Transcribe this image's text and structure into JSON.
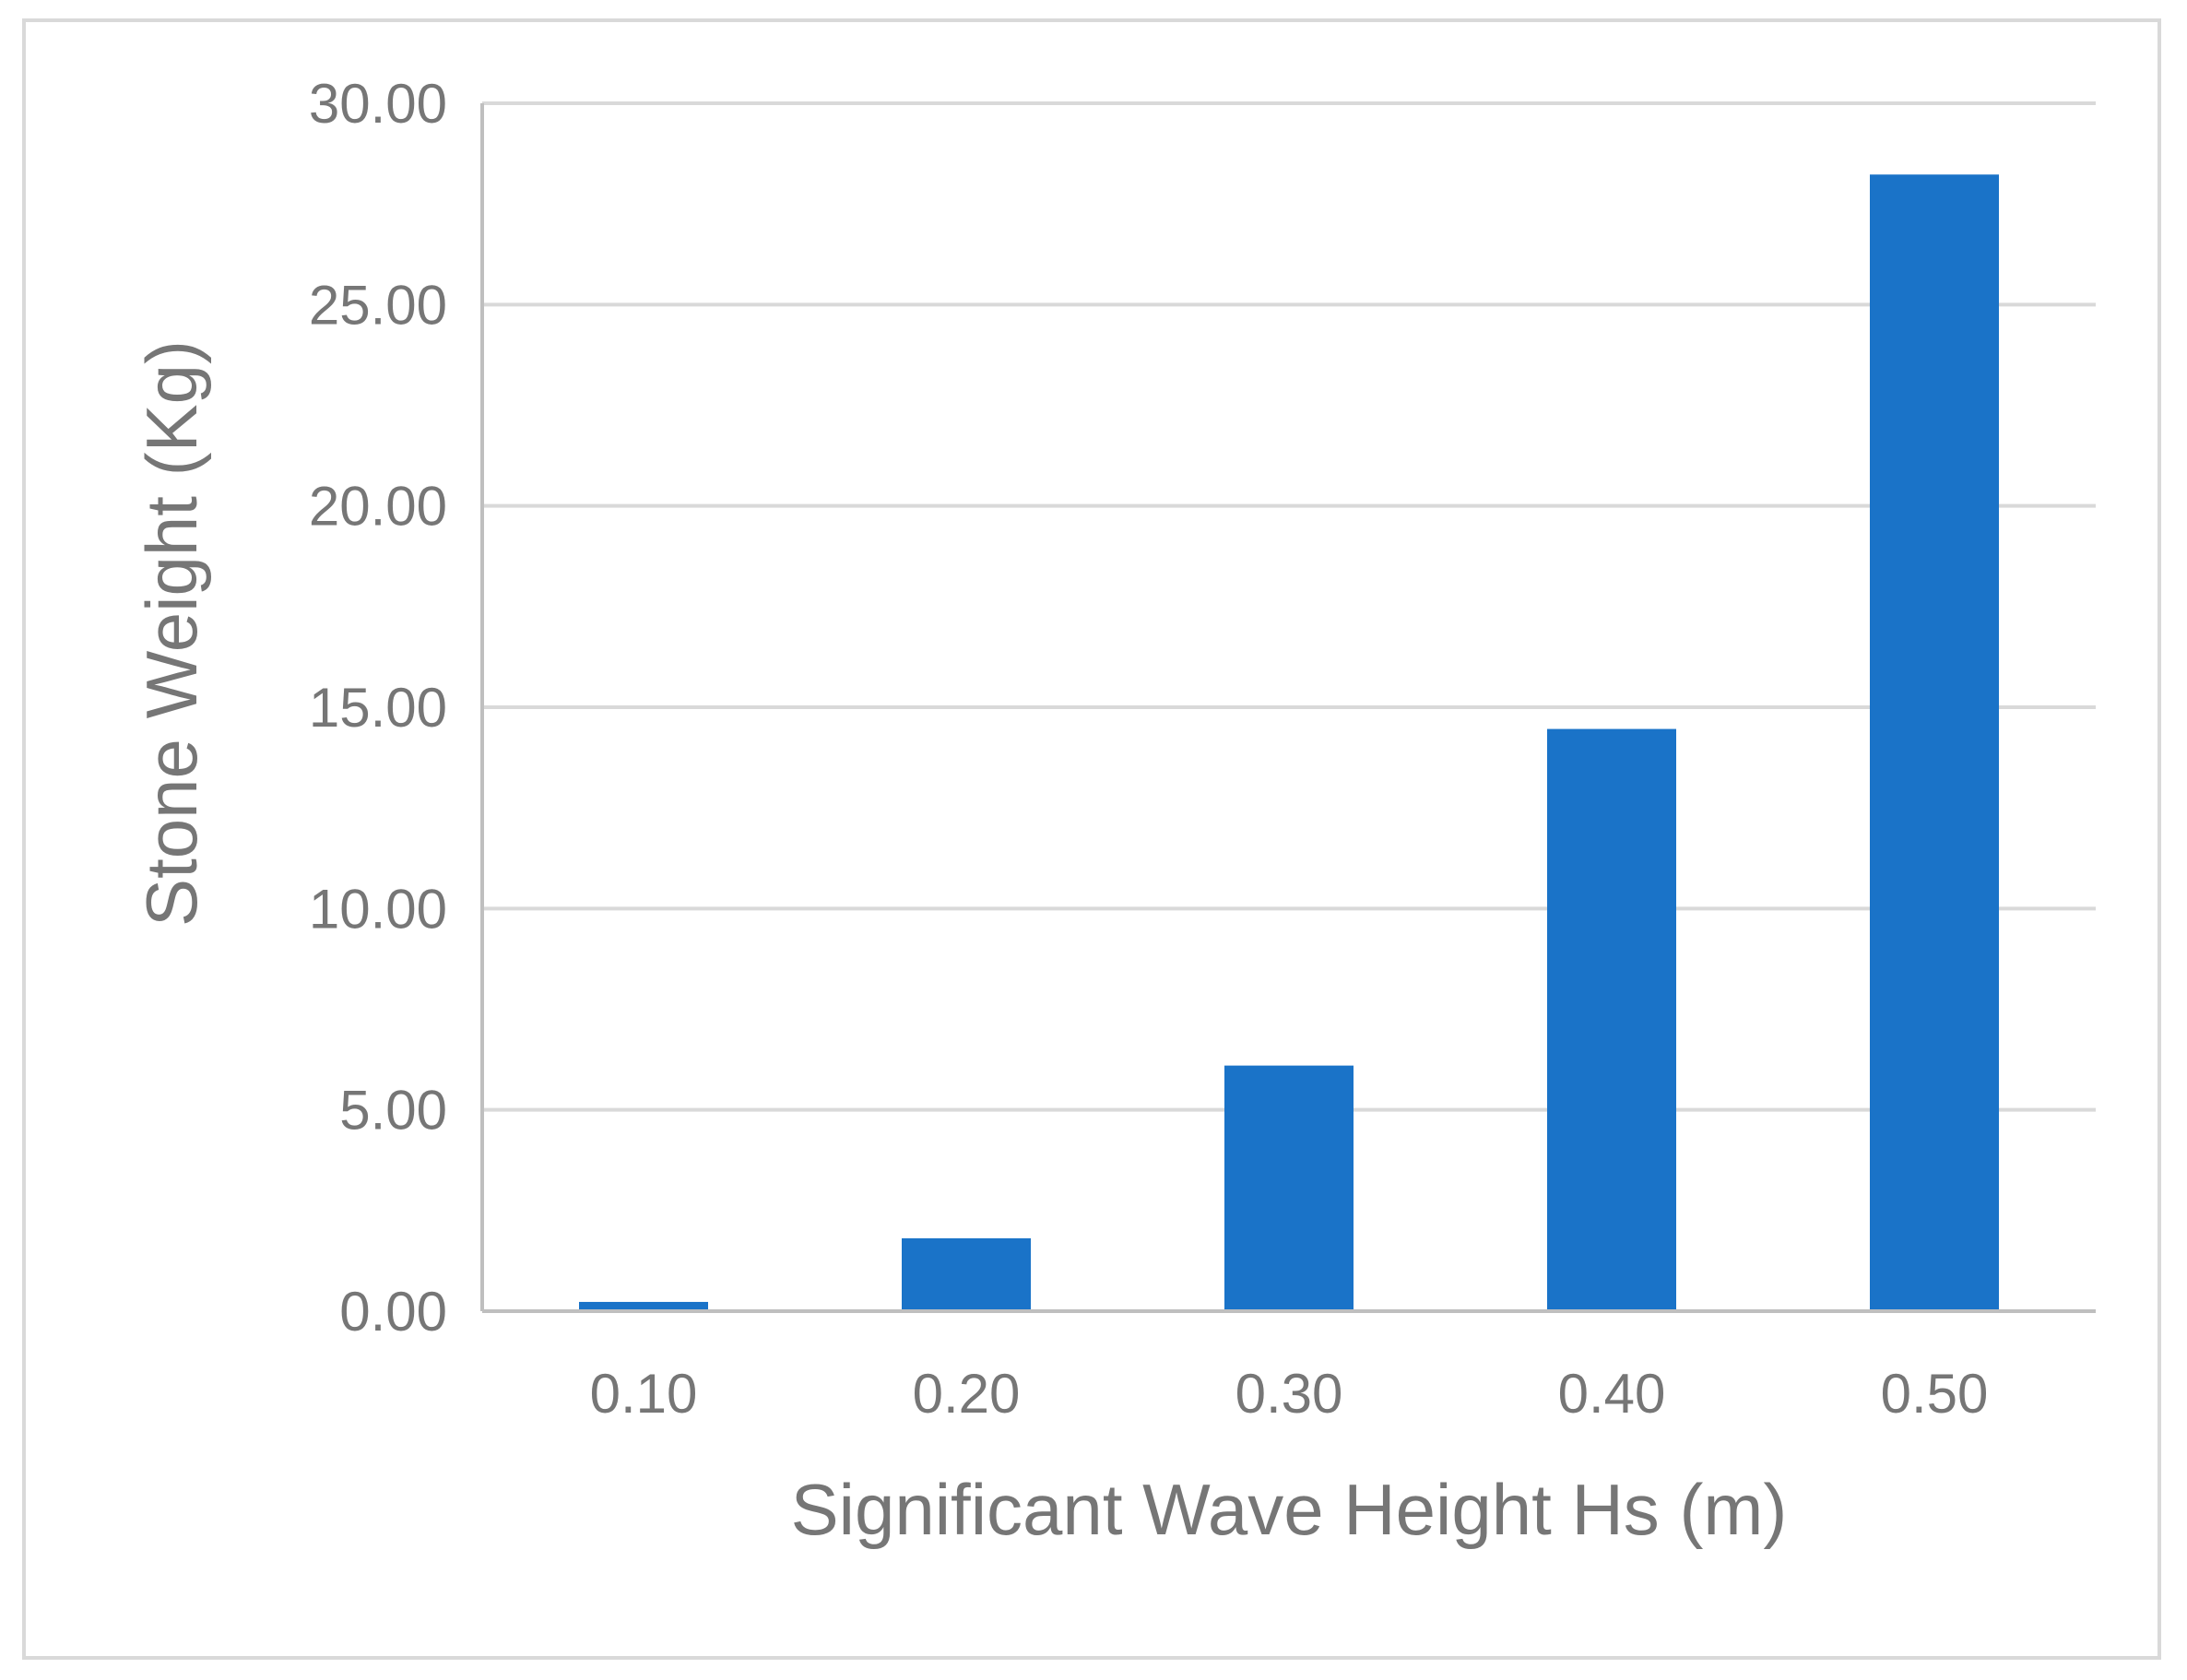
{
  "chart_data": {
    "type": "bar",
    "title": "",
    "xlabel": "Significant Wave Height Hs (m)",
    "ylabel": "Stone Weight (Kg)",
    "categories": [
      "0.10",
      "0.20",
      "0.30",
      "0.40",
      "0.50"
    ],
    "values": [
      0.23,
      1.81,
      6.1,
      14.46,
      28.23
    ],
    "ylim": [
      0,
      30
    ],
    "yticks": [
      "0.00",
      "5.00",
      "10.00",
      "15.00",
      "20.00",
      "25.00",
      "30.00"
    ],
    "grid": true,
    "legend": "none",
    "colors": {
      "bar": "#1a73c8",
      "grid": "#d9d9d9",
      "axis": "#bfbfbf",
      "text": "#767676",
      "frame": "#d9d9d9"
    }
  }
}
